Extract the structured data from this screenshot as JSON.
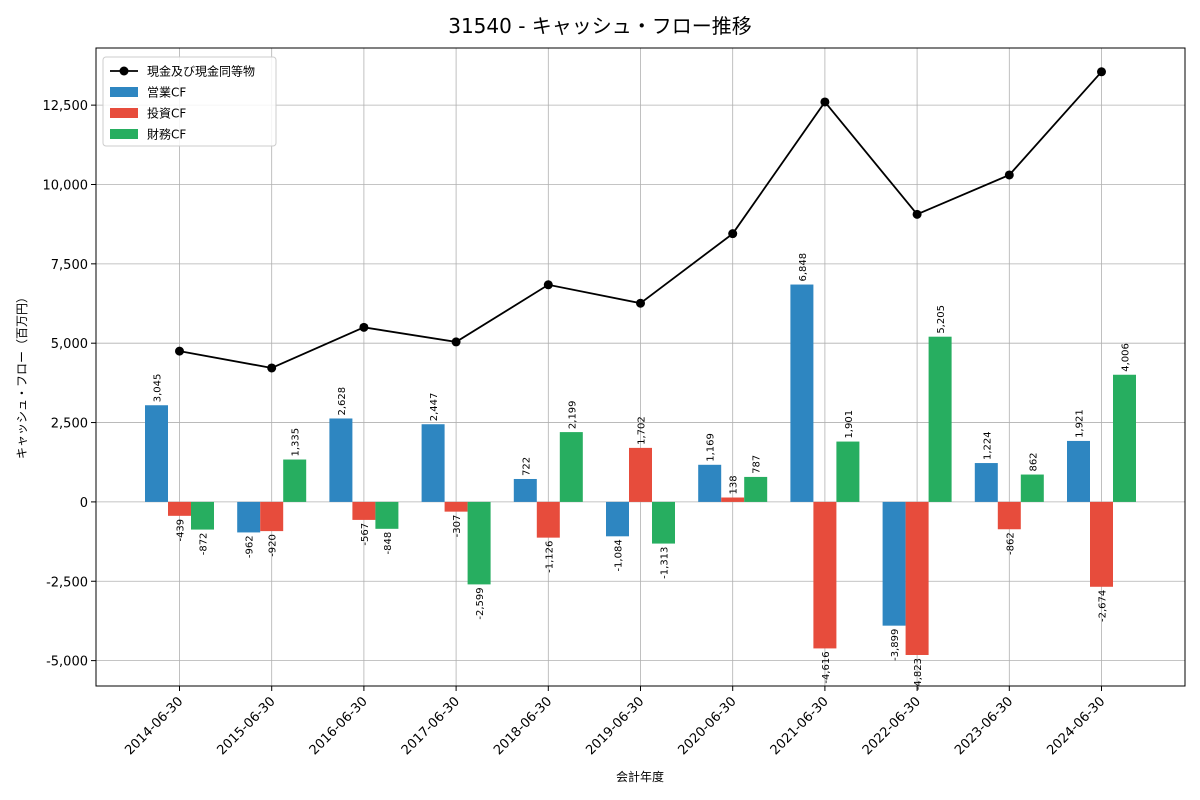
{
  "chart_data": {
    "type": "bar",
    "title": "31540 - キャッシュ・フロー推移",
    "xlabel": "会計年度",
    "ylabel": "キャッシュ・フロー（百万円）",
    "ylim": [
      -5800,
      14300
    ],
    "yticks": [
      -5000,
      -2500,
      0,
      2500,
      5000,
      7500,
      10000,
      12500
    ],
    "ytick_labels": [
      "-5,000",
      "-2,500",
      "0",
      "2,500",
      "5,000",
      "7,500",
      "10,000",
      "12,500"
    ],
    "grid": true,
    "legend_position": "top-left",
    "categories": [
      "2014-06-30",
      "2015-06-30",
      "2016-06-30",
      "2017-06-30",
      "2018-06-30",
      "2019-06-30",
      "2020-06-30",
      "2021-06-30",
      "2022-06-30",
      "2023-06-30",
      "2024-06-30"
    ],
    "series": [
      {
        "name": "営業CF",
        "kind": "bar",
        "color": "#2e86c1",
        "values": [
          3045,
          -962,
          2628,
          2447,
          722,
          -1084,
          1169,
          6848,
          -3899,
          1224,
          1921
        ],
        "labels": [
          "3,045",
          "-962",
          "2,628",
          "2,447",
          "722",
          "-1,084",
          "1,169",
          "6,848",
          "-3,899",
          "1,224",
          "1,921"
        ]
      },
      {
        "name": "投資CF",
        "kind": "bar",
        "color": "#e74c3c",
        "values": [
          -439,
          -920,
          -567,
          -307,
          -1126,
          1702,
          138,
          -4616,
          -4823,
          -862,
          -2674
        ],
        "labels": [
          "-439",
          "-920",
          "-567",
          "-307",
          "-1,126",
          "1,702",
          "138",
          "-4,616",
          "-4,823",
          "-862",
          "-2,674"
        ]
      },
      {
        "name": "財務CF",
        "kind": "bar",
        "color": "#27ae60",
        "values": [
          -872,
          1335,
          -848,
          -2599,
          2199,
          -1313,
          787,
          1901,
          5205,
          862,
          4006
        ],
        "labels": [
          "-872",
          "1,335",
          "-848",
          "-2,599",
          "2,199",
          "-1,313",
          "787",
          "1,901",
          "5,205",
          "862",
          "4,006"
        ]
      },
      {
        "name": "現金及び現金同等物",
        "kind": "line",
        "color": "#000000",
        "values": [
          4750,
          4220,
          5500,
          5040,
          6840,
          6260,
          8450,
          12600,
          9060,
          10300,
          13550
        ]
      }
    ]
  }
}
